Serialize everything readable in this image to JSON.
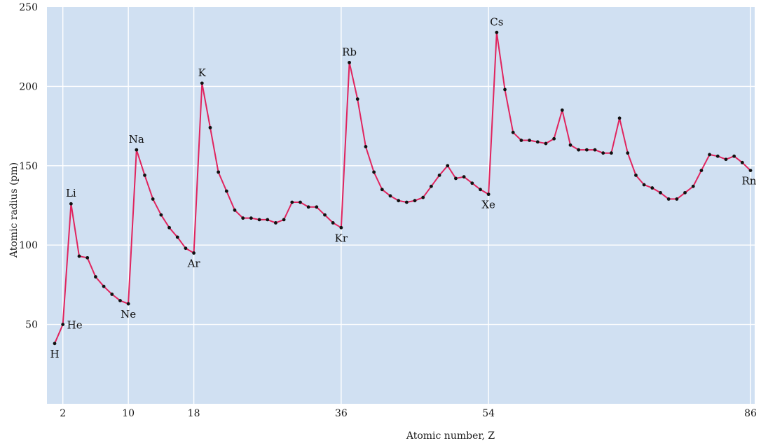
{
  "chart_data": {
    "type": "line",
    "title": "",
    "xlabel": "Atomic number, Z",
    "ylabel": "Atomic radius (pm)",
    "xlim": [
      1,
      86
    ],
    "ylim": [
      0,
      250
    ],
    "x_ticks": [
      2,
      10,
      18,
      36,
      54,
      86
    ],
    "y_ticks": [
      50,
      100,
      150,
      200,
      250
    ],
    "grid": true,
    "colors": {
      "plot_bg": "#d0e0f2",
      "line": "#e0245e",
      "marker": "#111111",
      "grid": "#ffffff"
    },
    "series": [
      {
        "x": [
          1,
          2,
          3,
          4,
          5,
          6,
          7,
          8,
          9,
          10,
          11,
          12,
          13,
          14,
          15,
          16,
          17,
          18,
          19,
          20,
          21,
          22,
          23,
          24,
          25,
          26,
          27,
          28,
          29,
          30,
          31,
          32,
          33,
          34,
          35,
          36,
          37,
          38,
          39,
          40,
          41,
          42,
          43,
          44,
          45,
          46,
          47,
          48,
          49,
          50,
          51,
          52,
          53,
          54,
          55,
          56,
          57,
          58,
          59,
          60,
          61,
          62,
          63,
          64,
          65,
          66,
          67,
          68,
          69,
          70,
          71,
          72,
          73,
          74,
          75,
          76,
          77,
          78,
          79,
          80,
          81,
          82,
          83,
          84,
          85,
          86
        ],
        "y": [
          38,
          50,
          126,
          93,
          92,
          80,
          74,
          69,
          65,
          63,
          160,
          144,
          129,
          119,
          111,
          105,
          98,
          95,
          202,
          174,
          146,
          134,
          122,
          117,
          117,
          116,
          116,
          114,
          116,
          127,
          127,
          124,
          124,
          119,
          114,
          111,
          215,
          192,
          162,
          146,
          135,
          131,
          128,
          127,
          128,
          130,
          137,
          144,
          150,
          142,
          143,
          139,
          135,
          132,
          234,
          198,
          171,
          166,
          166,
          165,
          164,
          167,
          185,
          163,
          160,
          160,
          160,
          158,
          158,
          180,
          158,
          144,
          138,
          136,
          133,
          129,
          129,
          133,
          137,
          147,
          157,
          156,
          154,
          156,
          152,
          147
        ]
      }
    ],
    "annotations": [
      {
        "text": "H",
        "x": 1,
        "y": 38,
        "pos": "below"
      },
      {
        "text": "He",
        "x": 2,
        "y": 50,
        "pos": "right"
      },
      {
        "text": "Li",
        "x": 3,
        "y": 126,
        "pos": "above"
      },
      {
        "text": "Ne",
        "x": 10,
        "y": 63,
        "pos": "below"
      },
      {
        "text": "Na",
        "x": 11,
        "y": 160,
        "pos": "above"
      },
      {
        "text": "Ar",
        "x": 18,
        "y": 95,
        "pos": "below"
      },
      {
        "text": "K",
        "x": 19,
        "y": 202,
        "pos": "above"
      },
      {
        "text": "Kr",
        "x": 36,
        "y": 111,
        "pos": "below"
      },
      {
        "text": "Rb",
        "x": 37,
        "y": 215,
        "pos": "above"
      },
      {
        "text": "Xe",
        "x": 54,
        "y": 132,
        "pos": "below"
      },
      {
        "text": "Cs",
        "x": 55,
        "y": 234,
        "pos": "above"
      },
      {
        "text": "Rn",
        "x": 86,
        "y": 147,
        "pos": "below"
      }
    ]
  }
}
